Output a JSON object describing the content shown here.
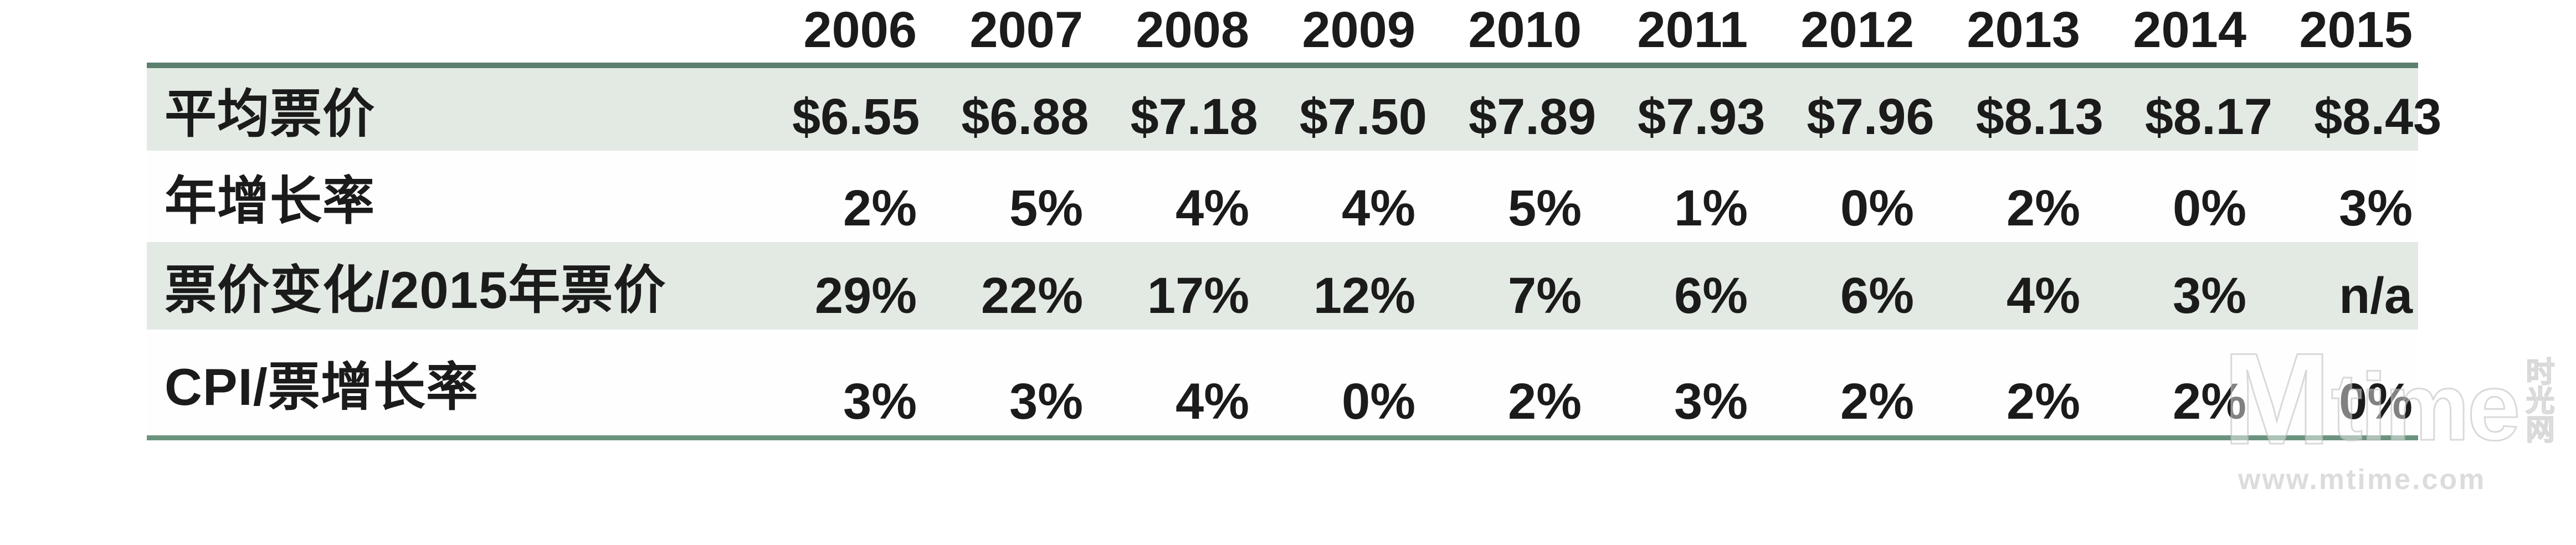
{
  "colors": {
    "row_shade": "#e3eae4",
    "top_border": "#5d7f6e",
    "bottom_border": "#6b937e",
    "text": "#1b1b1b",
    "watermark_gray": "#d9d9d9"
  },
  "chart_data": {
    "type": "table",
    "columns": [
      "2006",
      "2007",
      "2008",
      "2009",
      "2010",
      "2011",
      "2012",
      "2013",
      "2014",
      "2015"
    ],
    "rows": [
      {
        "label": "平均票价",
        "values": [
          "$6.55",
          "$6.88",
          "$7.18",
          "$7.50",
          "$7.89",
          "$7.93",
          "$7.96",
          "$8.13",
          "$8.17",
          "$8.43"
        ]
      },
      {
        "label": "年增长率",
        "values": [
          "2%",
          "5%",
          "4%",
          "4%",
          "5%",
          "1%",
          "0%",
          "2%",
          "0%",
          "3%"
        ]
      },
      {
        "label": "票价变化/2015年票价",
        "values": [
          "29%",
          "22%",
          "17%",
          "12%",
          "7%",
          "6%",
          "6%",
          "4%",
          "3%",
          "n/a"
        ]
      },
      {
        "label": "CPI/票增长率",
        "values": [
          "3%",
          "3%",
          "4%",
          "0%",
          "2%",
          "3%",
          "2%",
          "2%",
          "2%",
          "0%"
        ]
      }
    ],
    "layout": {
      "shaded_row_indexes": [
        0,
        2
      ],
      "top_rule": true,
      "bottom_rule": true
    }
  },
  "watermark": {
    "logo_m": "M",
    "logo_time": "time",
    "logo_cn": "时光网",
    "url": "www.mtime.com"
  }
}
